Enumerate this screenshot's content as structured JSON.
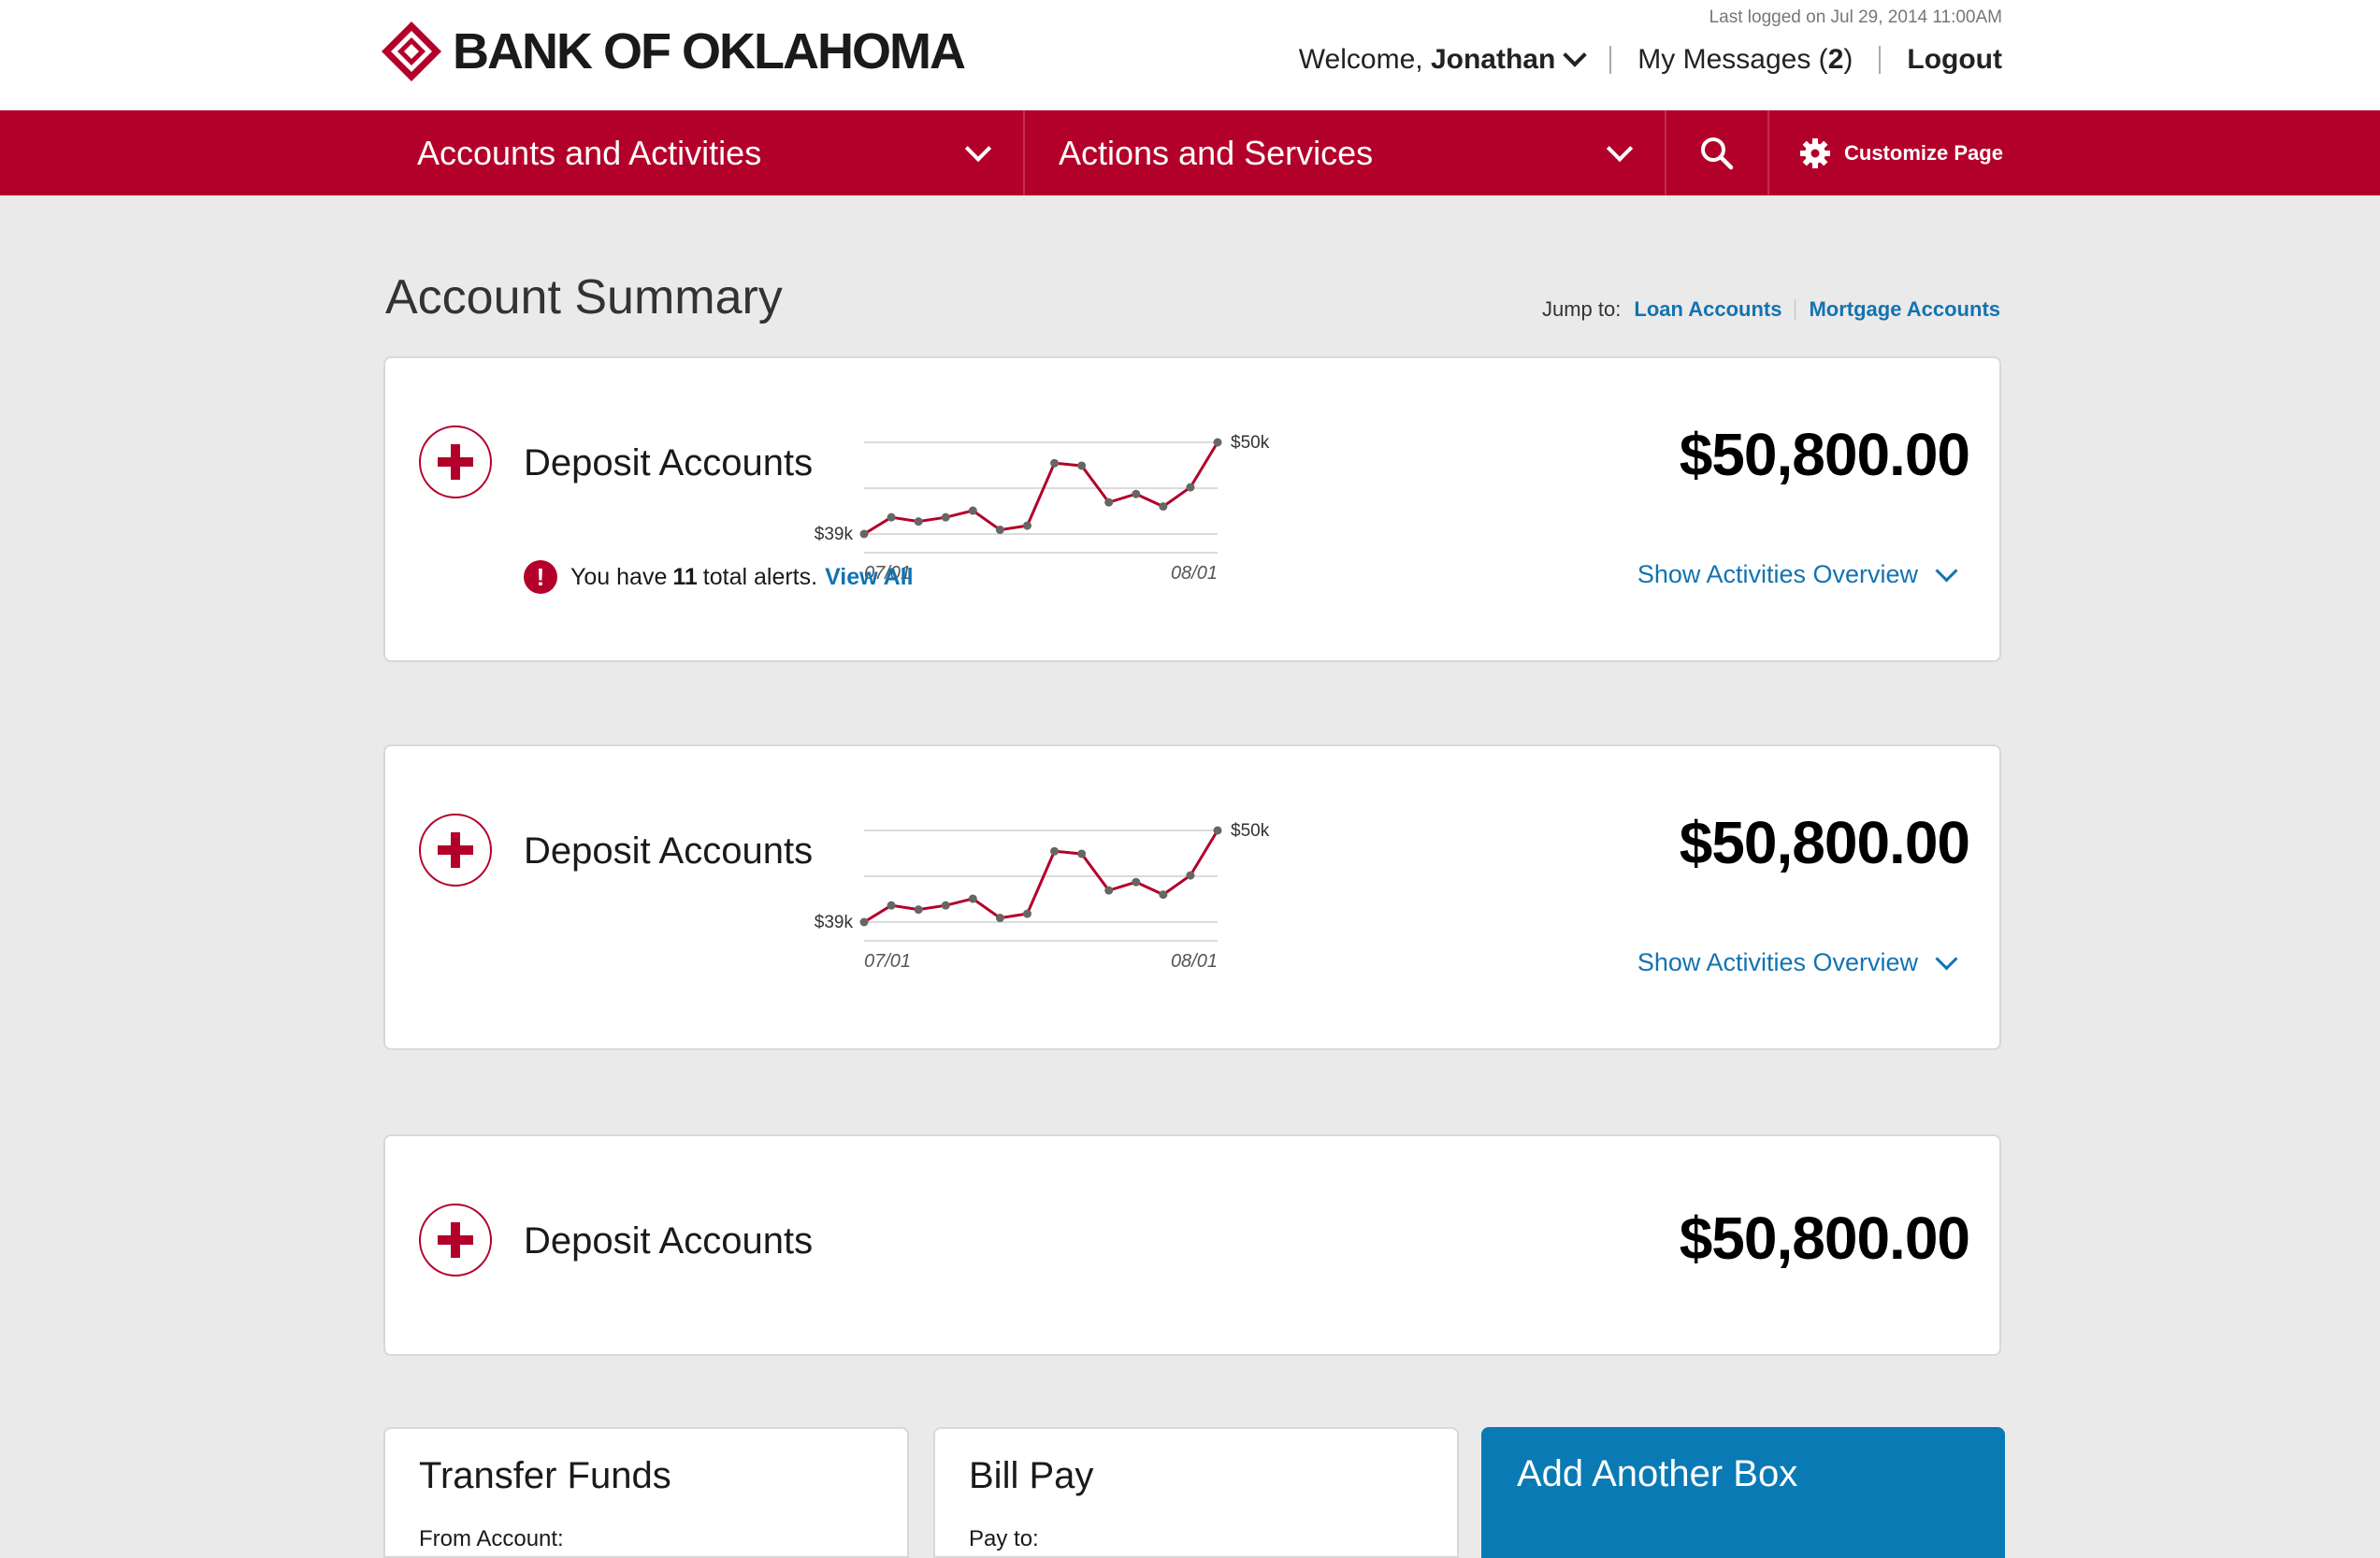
{
  "header": {
    "logo_text": "BANK OF OKLAHOMA",
    "last_logged": "Last logged on Jul 29, 2014 11:00AM",
    "welcome_prefix": "Welcome,",
    "user_name": "Jonathan",
    "messages_label": "My Messages (",
    "messages_count": "2",
    "messages_suffix": ")",
    "logout_label": "Logout"
  },
  "nav": {
    "accounts_label": "Accounts and Activities",
    "actions_label": "Actions and Services",
    "customize_label": "Customize Page"
  },
  "page": {
    "title": "Account Summary",
    "jump_label": "Jump to:",
    "jump_links": [
      "Loan Accounts",
      "Mortgage Accounts"
    ]
  },
  "accounts": [
    {
      "title": "Deposit Accounts",
      "balance": "$50,800.00",
      "show_activities": "Show Activities Overview",
      "alert": {
        "prefix": "You have",
        "count": "11",
        "suffix": "total alerts.",
        "link": "View All"
      },
      "chart": {
        "y_high": "$50k",
        "y_low": "$39k",
        "x_start": "07/01",
        "x_end": "08/01"
      }
    },
    {
      "title": "Deposit Accounts",
      "balance": "$50,800.00",
      "show_activities": "Show Activities Overview",
      "chart": {
        "y_high": "$50k",
        "y_low": "$39k",
        "x_start": "07/01",
        "x_end": "08/01"
      }
    },
    {
      "title": "Deposit Accounts",
      "balance": "$50,800.00"
    }
  ],
  "chart_data": {
    "type": "line",
    "x_ticks": [
      "07/01",
      "08/01"
    ],
    "y_ticks": [
      "$39k",
      "$50k"
    ],
    "values": [
      39,
      41,
      40.5,
      41,
      41.8,
      39.5,
      40,
      47.5,
      47.2,
      42.8,
      43.8,
      42.3,
      44.6,
      50
    ],
    "ylim": [
      39,
      50
    ]
  },
  "boxes": [
    {
      "title": "Transfer Funds",
      "sub": "From Account:"
    },
    {
      "title": "Bill Pay",
      "sub": "Pay to:"
    },
    {
      "title": "Add Another Box",
      "sub": ""
    }
  ],
  "colors": {
    "brand_red": "#b3002a",
    "link_blue": "#1373b1",
    "box_blue": "#0a7ab4"
  }
}
